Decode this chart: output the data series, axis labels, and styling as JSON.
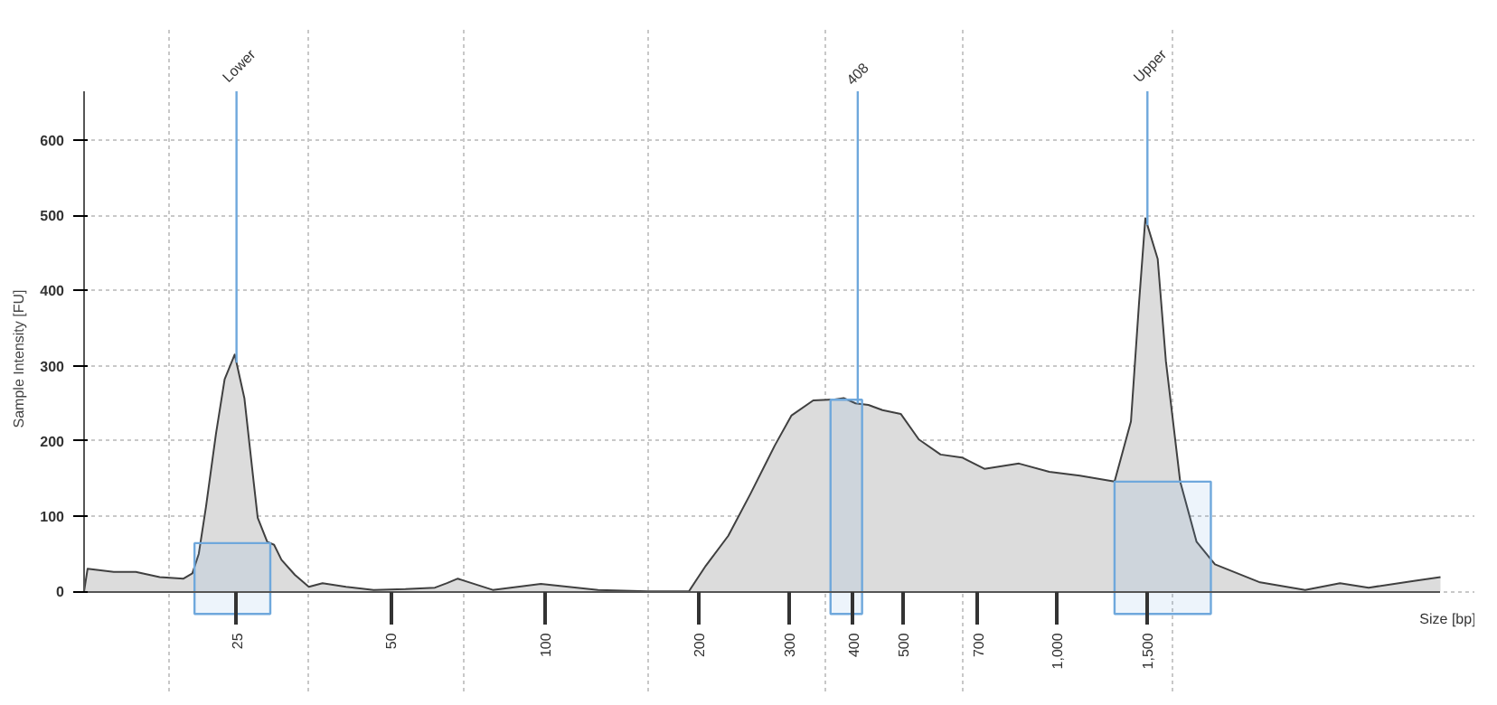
{
  "chart_data": {
    "type": "area",
    "xlabel": "Size [bp]",
    "ylabel": "Sample Intensity [FU]",
    "log": "x",
    "xlim": [
      12.6,
      5600
    ],
    "ylim": [
      0,
      665
    ],
    "xticks": [
      25,
      50,
      100,
      200,
      300,
      400,
      500,
      700,
      {
        "value": 1000,
        "label": "1,000"
      },
      {
        "value": 1500,
        "label": "1,500"
      },
      {
        "value": 18.5,
        "label": null
      },
      {
        "value": 34.4,
        "label": null
      },
      {
        "value": 69.7,
        "label": null
      },
      {
        "value": 159,
        "label": null
      },
      {
        "value": 352,
        "label": null
      },
      {
        "value": 652,
        "label": null
      },
      {
        "value": 1675,
        "label": null
      }
    ],
    "yticks": [
      0,
      100,
      200,
      300,
      400,
      500,
      600
    ],
    "grid": true,
    "series": [
      {
        "color": "#dcdcdc",
        "x": [
          12.6,
          12.8,
          14.4,
          15.9,
          17.7,
          19.7,
          20.5,
          21.1,
          21.8,
          22.8,
          23.7,
          24.8,
          25.9,
          27.0,
          27.5,
          28.7,
          29.6,
          30.6,
          32.5,
          34.6,
          36.8,
          40.9,
          46.3,
          53.4,
          61.0,
          64.4,
          67.6,
          79.1,
          98.2,
          127,
          159,
          191,
          206,
          228,
          252,
          281,
          303,
          334,
          365,
          383,
          404,
          428,
          456,
          495,
          537,
          592,
          652,
          721,
          842,
          965,
          1107,
          1294,
          1393,
          1445,
          1486,
          1571,
          1630,
          1738,
          1871,
          2032,
          2489,
          3048,
          3565,
          4055,
          4966,
          5600
        ],
        "values": [
          0,
          30,
          26,
          26,
          19,
          17,
          24,
          50,
          113,
          210,
          282,
          315,
          257,
          146,
          98,
          66,
          62,
          42,
          22,
          6,
          11,
          6,
          2,
          3,
          5,
          11,
          17,
          2,
          10,
          2,
          0,
          0,
          34,
          74,
          130,
          194,
          234,
          254,
          255,
          257,
          250,
          248,
          241,
          236,
          202,
          182,
          178,
          163,
          170,
          159,
          154,
          146,
          226,
          385,
          496,
          442,
          306,
          146,
          66,
          36,
          12,
          2,
          11,
          5,
          14,
          19
        ]
      }
    ],
    "ref_lines": [
      {
        "axis": "x",
        "value": 25,
        "label": "Lower",
        "color": "#6fa8dc"
      },
      {
        "axis": "x",
        "value": 408,
        "label": "408",
        "color": "#6fa8dc"
      },
      {
        "axis": "x",
        "value": 1500,
        "label": "Upper",
        "color": "#6fa8dc"
      }
    ],
    "bands": [
      {
        "axis": "x",
        "from": 20.7,
        "to": 29.1,
        "color": "#6fa8dc"
      },
      {
        "axis": "x",
        "from": 361,
        "to": 416,
        "color": "#6fa8dc"
      },
      {
        "axis": "x",
        "from": 1294,
        "to": 1995,
        "color": "#6fa8dc"
      }
    ]
  }
}
